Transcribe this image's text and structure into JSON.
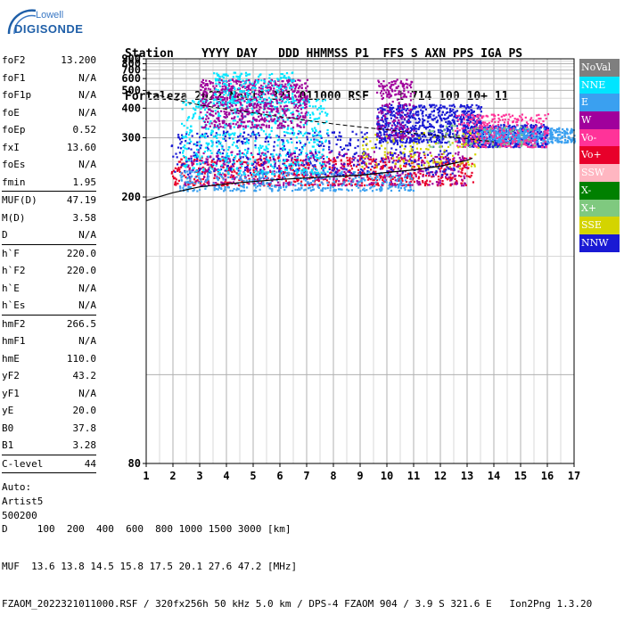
{
  "logo": {
    "brand": "Lowell",
    "product": "DIGISONDE"
  },
  "header": {
    "line1": "Station    YYYY DAY   DDD HHMMSS P1  FFS S AXN PPS IGA PS",
    "line2": "Fortaleza 2022 Nov17 321 011000 RSF    1 714 100 10+ 11"
  },
  "params": {
    "group1": [
      {
        "name": "foF2",
        "value": "13.200"
      },
      {
        "name": "foF1",
        "value": "N/A"
      },
      {
        "name": "foF1p",
        "value": "N/A"
      },
      {
        "name": "foE",
        "value": "N/A"
      },
      {
        "name": "foEp",
        "value": "0.52"
      },
      {
        "name": "fxI",
        "value": "13.60"
      },
      {
        "name": "foEs",
        "value": "N/A"
      },
      {
        "name": "fmin",
        "value": "1.95"
      }
    ],
    "group2": [
      {
        "name": "MUF(D)",
        "value": "47.19"
      },
      {
        "name": "M(D)",
        "value": "3.58"
      },
      {
        "name": "D",
        "value": "N/A"
      }
    ],
    "group3": [
      {
        "name": "h`F",
        "value": "220.0"
      },
      {
        "name": "h`F2",
        "value": "220.0"
      },
      {
        "name": "h`E",
        "value": "N/A"
      },
      {
        "name": "h`Es",
        "value": "N/A"
      }
    ],
    "group4": [
      {
        "name": "hmF2",
        "value": "266.5"
      },
      {
        "name": "hmF1",
        "value": "N/A"
      },
      {
        "name": "hmE",
        "value": "110.0"
      },
      {
        "name": "yF2",
        "value": "43.2"
      },
      {
        "name": "yF1",
        "value": "N/A"
      },
      {
        "name": "yE",
        "value": "20.0"
      },
      {
        "name": "B0",
        "value": "37.8"
      },
      {
        "name": "B1",
        "value": "3.28"
      }
    ],
    "group5": [
      {
        "name": "C-level",
        "value": "44"
      }
    ],
    "auto": [
      "Auto:",
      "Artist5",
      "500200"
    ]
  },
  "legend": [
    {
      "label": "NoVal",
      "color": "#7f7f7f"
    },
    {
      "label": "NNE",
      "color": "#00e5ff"
    },
    {
      "label": "E",
      "color": "#3aa0f0"
    },
    {
      "label": "W",
      "color": "#a0009c"
    },
    {
      "label": "Vo-",
      "color": "#ff3399"
    },
    {
      "label": "Vo+",
      "color": "#e8002a"
    },
    {
      "label": "SSW",
      "color": "#ffb6c1"
    },
    {
      "label": "X-",
      "color": "#008000"
    },
    {
      "label": "X+",
      "color": "#7fc97f"
    },
    {
      "label": "SSE",
      "color": "#d4d400"
    },
    {
      "label": "NNW",
      "color": "#1a1ad4"
    }
  ],
  "chart_data": {
    "type": "scatter",
    "title": "",
    "xlabel": "",
    "ylabel": "",
    "xlim": [
      1,
      17
    ],
    "ylim": [
      80,
      900
    ],
    "xticks": [
      1,
      2,
      3,
      4,
      5,
      6,
      7,
      8,
      9,
      10,
      11,
      12,
      13,
      14,
      15,
      16,
      17
    ],
    "yticks": [
      80,
      200,
      300,
      400,
      500,
      600,
      700,
      800,
      900
    ],
    "y_scale": "reciprocal",
    "grid": true,
    "legend_placement": "right",
    "clusters": [
      {
        "series": "Vo+",
        "x": [
          1.9,
          13.2
        ],
        "y": [
          215,
          260
        ],
        "n": 700
      },
      {
        "series": "W",
        "x": [
          2.4,
          13.0
        ],
        "y": [
          215,
          270
        ],
        "n": 500
      },
      {
        "series": "NNW",
        "x": [
          1.9,
          12.5
        ],
        "y": [
          230,
          320
        ],
        "n": 500
      },
      {
        "series": "NNW",
        "x": [
          9.6,
          13.5
        ],
        "y": [
          290,
          420
        ],
        "n": 700
      },
      {
        "series": "E",
        "x": [
          2.2,
          11.0
        ],
        "y": [
          208,
          235
        ],
        "n": 400
      },
      {
        "series": "NNE",
        "x": [
          2.3,
          7.8
        ],
        "y": [
          230,
          450
        ],
        "n": 600
      },
      {
        "series": "W",
        "x": [
          3.0,
          7.0
        ],
        "y": [
          330,
          600
        ],
        "n": 700
      },
      {
        "series": "NNE",
        "x": [
          3.5,
          6.5
        ],
        "y": [
          430,
          680
        ],
        "n": 200
      },
      {
        "series": "NNW",
        "x": [
          12.8,
          16.0
        ],
        "y": [
          280,
          340
        ],
        "n": 500
      },
      {
        "series": "E",
        "x": [
          13.5,
          17.0
        ],
        "y": [
          290,
          330
        ],
        "n": 400
      },
      {
        "series": "Vo-",
        "x": [
          12.5,
          16.0
        ],
        "y": [
          280,
          380
        ],
        "n": 300
      },
      {
        "series": "SSE",
        "x": [
          9.0,
          13.5
        ],
        "y": [
          240,
          320
        ],
        "n": 120
      },
      {
        "series": "X+",
        "x": [
          11.5,
          15.5
        ],
        "y": [
          280,
          340
        ],
        "n": 60
      },
      {
        "series": "W",
        "x": [
          9.6,
          11.0
        ],
        "y": [
          300,
          600
        ],
        "n": 200
      }
    ],
    "curves": [
      {
        "name": "ionogram-profile",
        "style": "solid",
        "x": [
          1,
          2,
          3,
          4,
          5,
          6,
          7,
          8,
          9,
          10,
          11,
          12,
          13,
          13.2
        ],
        "y": [
          196,
          205,
          212,
          216,
          219,
          222,
          224,
          226,
          228,
          232,
          236,
          242,
          252,
          256
        ]
      },
      {
        "name": "muf-curve",
        "style": "dashed",
        "x": [
          1,
          2,
          3,
          4,
          5,
          6,
          7,
          8,
          9,
          10,
          11,
          12,
          13,
          14
        ],
        "y": [
          490,
          445,
          415,
          395,
          380,
          365,
          352,
          340,
          330,
          322,
          312,
          305,
          298,
          290
        ]
      }
    ]
  },
  "footer": {
    "line1": "D     100  200  400  600  800 1000 1500 3000 [km]",
    "line2": "MUF  13.6 13.8 14.5 15.8 17.5 20.1 27.6 47.2 [MHz]",
    "line3": "FZAOM_2022321011000.RSF / 320fx256h 50 kHz 5.0 km / DPS-4 FZAOM 904 / 3.9 S 321.6 E   Ion2Png 1.3.20"
  }
}
